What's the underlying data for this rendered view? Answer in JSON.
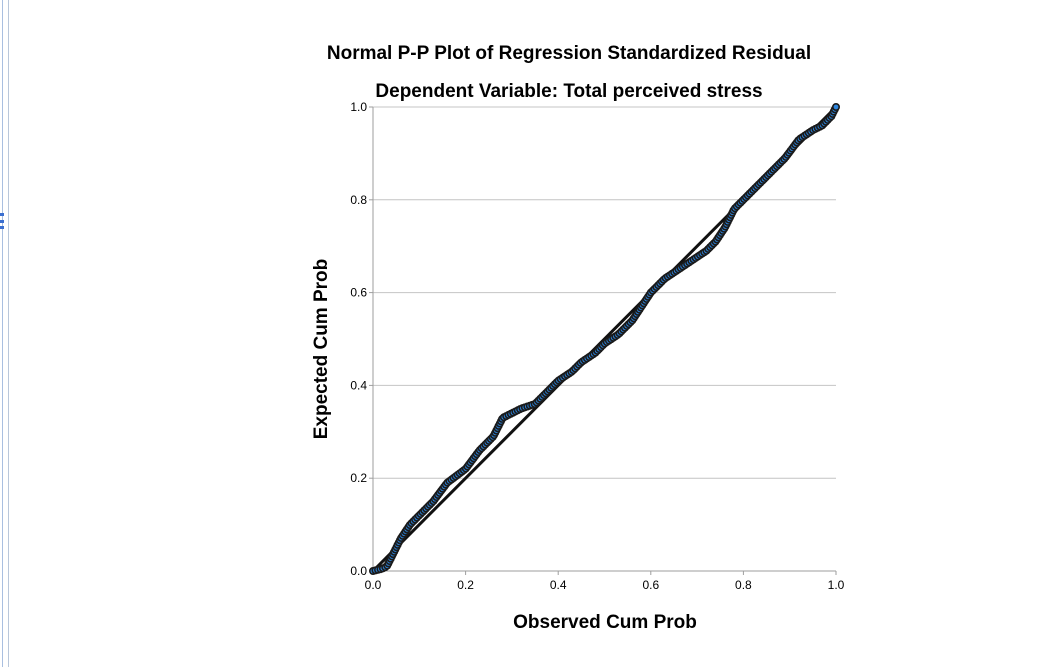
{
  "chart_data": {
    "type": "scatter",
    "title": "Normal P-P Plot of Regression Standardized Residual",
    "subtitle": "Dependent Variable: Total perceived stress",
    "xlabel": "Observed Cum Prob",
    "ylabel": "Expected Cum Prob",
    "xlim": [
      0.0,
      1.0
    ],
    "ylim": [
      0.0,
      1.0
    ],
    "x_ticks": [
      "0.0",
      "0.2",
      "0.4",
      "0.6",
      "0.8",
      "1.0"
    ],
    "y_ticks": [
      "0.0",
      "0.2",
      "0.4",
      "0.6",
      "0.8",
      "1.0"
    ],
    "grid": "horizontal",
    "reference_line": [
      [
        0.0,
        0.0
      ],
      [
        1.0,
        1.0
      ]
    ],
    "point_color": "#2e86de",
    "point_edge_color": "#1a1a1a",
    "curve": [
      [
        0.0,
        0.0
      ],
      [
        0.02,
        0.005
      ],
      [
        0.03,
        0.01
      ],
      [
        0.04,
        0.03
      ],
      [
        0.05,
        0.05
      ],
      [
        0.06,
        0.07
      ],
      [
        0.08,
        0.1
      ],
      [
        0.1,
        0.12
      ],
      [
        0.13,
        0.15
      ],
      [
        0.16,
        0.19
      ],
      [
        0.2,
        0.22
      ],
      [
        0.23,
        0.26
      ],
      [
        0.26,
        0.29
      ],
      [
        0.28,
        0.33
      ],
      [
        0.3,
        0.34
      ],
      [
        0.32,
        0.35
      ],
      [
        0.35,
        0.36
      ],
      [
        0.38,
        0.39
      ],
      [
        0.4,
        0.41
      ],
      [
        0.43,
        0.43
      ],
      [
        0.45,
        0.45
      ],
      [
        0.48,
        0.47
      ],
      [
        0.5,
        0.49
      ],
      [
        0.53,
        0.51
      ],
      [
        0.56,
        0.54
      ],
      [
        0.58,
        0.57
      ],
      [
        0.6,
        0.6
      ],
      [
        0.63,
        0.63
      ],
      [
        0.66,
        0.65
      ],
      [
        0.69,
        0.67
      ],
      [
        0.72,
        0.69
      ],
      [
        0.74,
        0.71
      ],
      [
        0.76,
        0.74
      ],
      [
        0.77,
        0.76
      ],
      [
        0.78,
        0.78
      ],
      [
        0.8,
        0.8
      ],
      [
        0.83,
        0.83
      ],
      [
        0.86,
        0.86
      ],
      [
        0.89,
        0.89
      ],
      [
        0.92,
        0.93
      ],
      [
        0.95,
        0.95
      ],
      [
        0.97,
        0.96
      ],
      [
        0.99,
        0.98
      ],
      [
        1.0,
        1.0
      ]
    ]
  }
}
